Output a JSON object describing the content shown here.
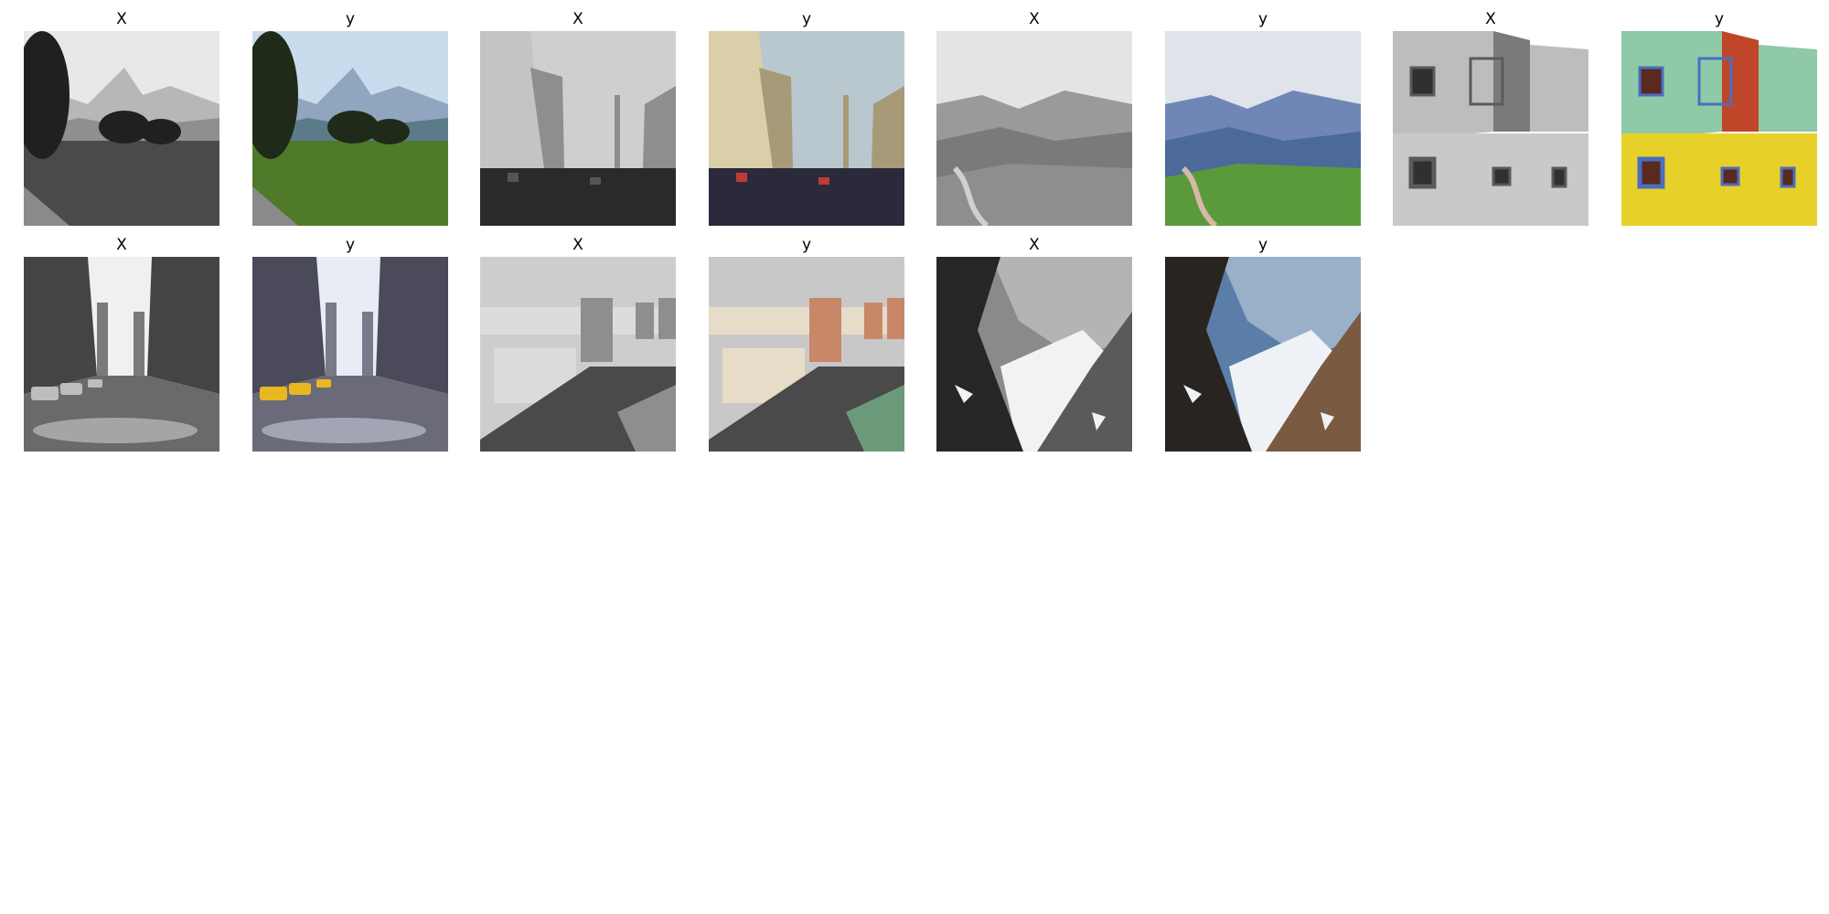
{
  "grid": {
    "rows": 2,
    "columns": 8,
    "panels": [
      {
        "title": "X",
        "scene": "mountain-forest",
        "colored": false
      },
      {
        "title": "y",
        "scene": "mountain-forest",
        "colored": true
      },
      {
        "title": "X",
        "scene": "city-street-crowd",
        "colored": false
      },
      {
        "title": "y",
        "scene": "city-street-crowd",
        "colored": true
      },
      {
        "title": "X",
        "scene": "valley-hills",
        "colored": false
      },
      {
        "title": "y",
        "scene": "valley-hills",
        "colored": true
      },
      {
        "title": "X",
        "scene": "painted-house",
        "colored": false
      },
      {
        "title": "y",
        "scene": "painted-house",
        "colored": true
      },
      {
        "title": "X",
        "scene": "avenue-taxis",
        "colored": false
      },
      {
        "title": "y",
        "scene": "avenue-taxis",
        "colored": true
      },
      {
        "title": "X",
        "scene": "city-aerial",
        "colored": false
      },
      {
        "title": "y",
        "scene": "city-aerial",
        "colored": true
      },
      {
        "title": "X",
        "scene": "snow-cliffs",
        "colored": false
      },
      {
        "title": "y",
        "scene": "snow-cliffs",
        "colored": true
      }
    ]
  }
}
